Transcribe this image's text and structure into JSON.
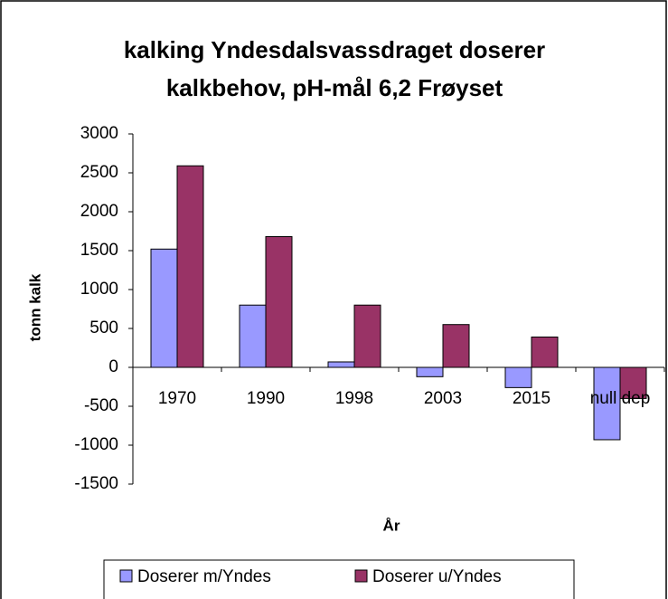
{
  "chart_data": {
    "type": "bar",
    "title": "kalking Yndesdalsvassdraget doserer kalkbehov, pH-mål 6,2 Frøyset",
    "y_label": "tonn kalk",
    "x_label": "År",
    "categories": [
      "1970",
      "1990",
      "1998",
      "2003",
      "2015",
      "null dep"
    ],
    "series": [
      {
        "name": "Doserer m/Yndes",
        "color": "#9999ff",
        "values": [
          1520,
          800,
          70,
          -120,
          -260,
          -930
        ]
      },
      {
        "name": "Doserer u/Yndes",
        "color": "#993366",
        "values": [
          2590,
          1680,
          800,
          550,
          390,
          -400
        ]
      }
    ],
    "ylim": [
      -1500,
      3000
    ],
    "yticks": [
      -1500,
      -1000,
      -500,
      0,
      500,
      1000,
      1500,
      2000,
      2500,
      3000
    ],
    "grid": false,
    "legend": "bottom"
  }
}
